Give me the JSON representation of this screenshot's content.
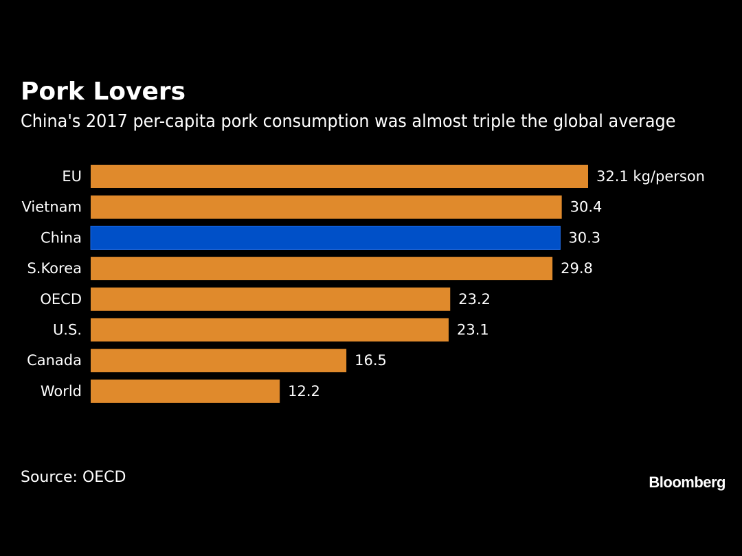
{
  "colors": {
    "background": "#000000",
    "bar_default": "#E08A2C",
    "bar_highlight": "#0050C8",
    "bar_highlight_border": "#1E6BE6",
    "text": "#FFFFFF"
  },
  "chart_data": {
    "type": "bar",
    "orientation": "horizontal",
    "title": "Pork Lovers",
    "subtitle": "China's 2017 per-capita pork consumption was almost triple the global average",
    "unit": "kg/person",
    "categories": [
      "EU",
      "Vietnam",
      "China",
      "S.Korea",
      "OECD",
      "U.S.",
      "Canada",
      "World"
    ],
    "values": [
      32.1,
      30.4,
      30.3,
      29.8,
      23.2,
      23.1,
      16.5,
      12.2
    ],
    "value_labels": [
      "32.1 kg/person",
      "30.4",
      "30.3",
      "29.8",
      "23.2",
      "23.1",
      "16.5",
      "12.2"
    ],
    "highlight": "China",
    "xlim": [
      0,
      32.1
    ],
    "grid": false,
    "legend": "none"
  },
  "footer": {
    "source": "Source: OECD",
    "brand": "Bloomberg"
  }
}
